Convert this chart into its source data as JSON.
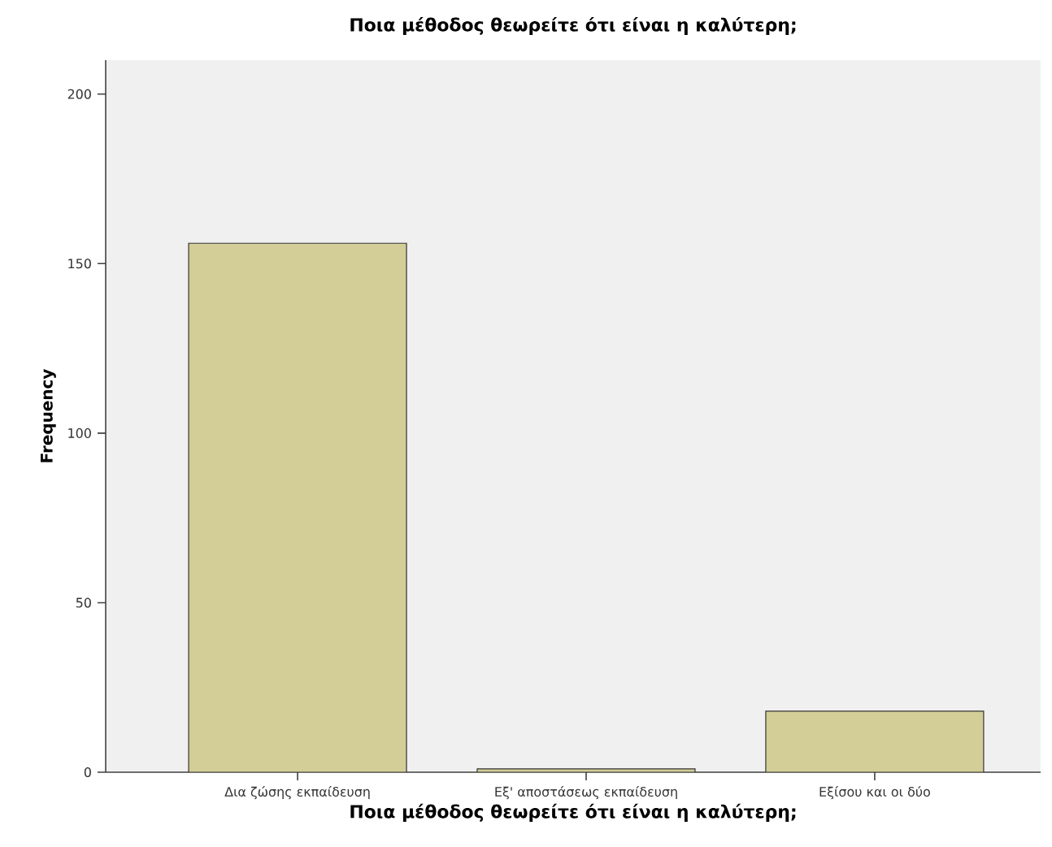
{
  "chart_data": {
    "type": "bar",
    "title": "Ποια μέθοδος θεωρείτε ότι είναι η καλύτερη;",
    "xlabel": "Ποια μέθοδος θεωρείτε ότι είναι η καλύτερη;",
    "ylabel": "Frequency",
    "categories": [
      "Δια ζώσης εκπαίδευση",
      "Εξ' αποστάσεως εκπαίδευση",
      "Εξίσου και οι δύο"
    ],
    "values": [
      156,
      1,
      18
    ],
    "color": "#d3ce97",
    "ylim": [
      0,
      210
    ],
    "yticks": [
      0,
      50,
      100,
      150,
      200
    ],
    "grid": false
  }
}
